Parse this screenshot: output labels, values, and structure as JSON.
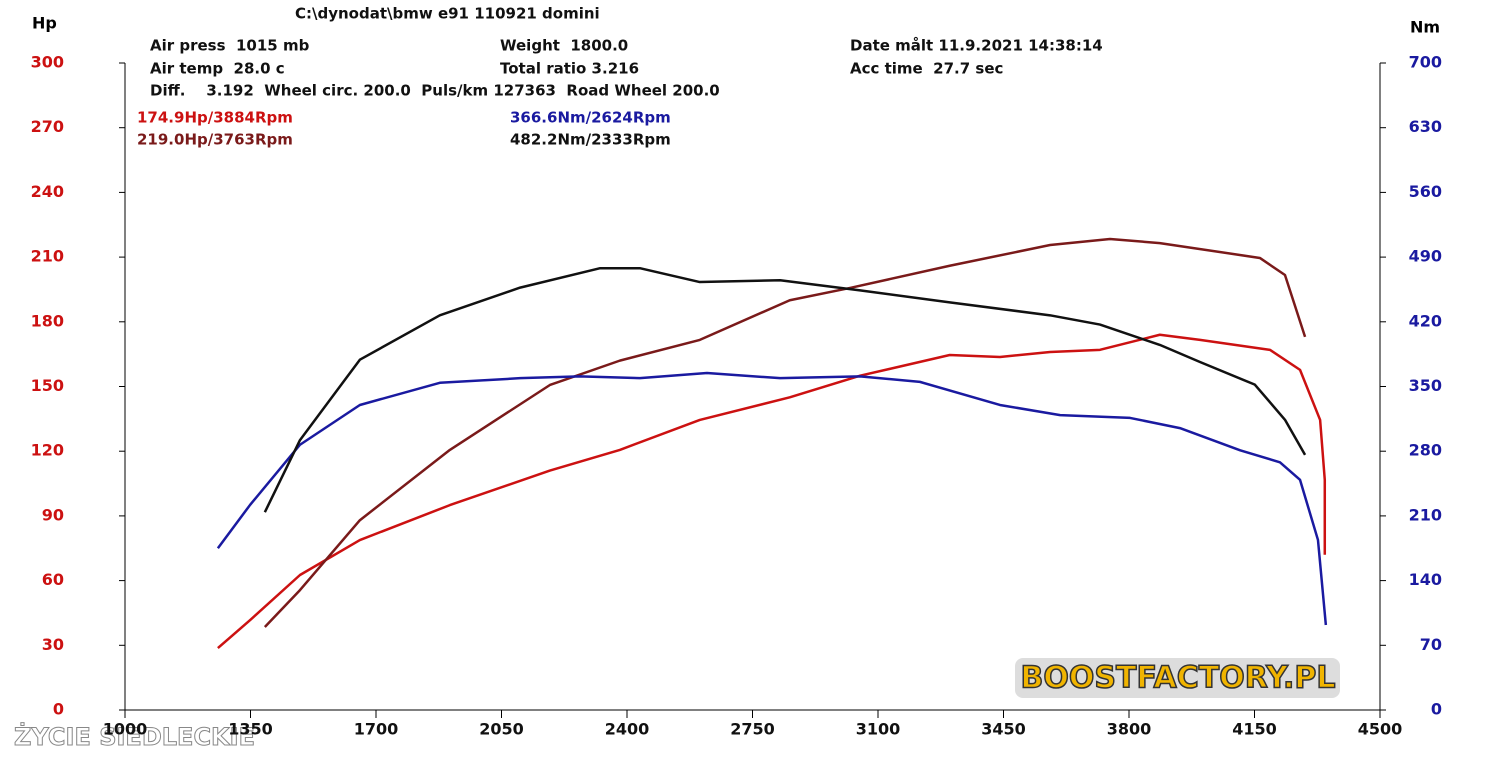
{
  "chart_data": {
    "type": "line",
    "title": "C:\\dynodat\\bmw e91 110921 domini",
    "info": [
      "Air press  1015 mb",
      "Air temp  28.0 c",
      "Diff.    3.192  Wheel circ. 200.0  Puls/km 127363  Road Wheel 200.0",
      "Weight  1800.0",
      "Total ratio 3.216",
      "Date målt 11.9.2021 14:38:14",
      "Acc time  27.7 sec"
    ],
    "y_label": "Hp",
    "y2_label": "Nm",
    "watermarks": [
      "BOOSTFACTORY.PL",
      "ŻYCIE SIEDLECKIE"
    ],
    "xlim": [
      1000,
      4500
    ],
    "xticks": [
      1000,
      1350,
      1700,
      2050,
      2400,
      2750,
      3100,
      3450,
      3800,
      4150,
      4500
    ],
    "ylim": [
      0,
      300
    ],
    "yticks": [
      0,
      30,
      60,
      90,
      120,
      150,
      180,
      210,
      240,
      270,
      300
    ],
    "y2lim": [
      0,
      700
    ],
    "y2ticks": [
      0,
      70,
      140,
      210,
      280,
      350,
      420,
      490,
      560,
      630,
      700
    ],
    "ytick_color": "#cc1111",
    "y2tick_color": "#1a1aa0",
    "series": [
      {
        "name": "174.9Hp/3884Rpm",
        "color": "#cc1111",
        "axis": "y",
        "x": [
          1259,
          1349,
          1488,
          1655,
          1906,
          2185,
          2380,
          2603,
          2854,
          3050,
          3300,
          3440,
          3580,
          3719,
          3886,
          3998,
          4193,
          4277,
          4333,
          4346,
          4346
        ],
        "values": [
          28.7,
          41.7,
          62.6,
          78.8,
          95,
          111,
          120.6,
          134.5,
          145,
          155,
          164.6,
          163.7,
          166,
          167,
          174,
          171.6,
          167,
          157.7,
          134.5,
          106.7,
          72
        ]
      },
      {
        "name": "219.0Hp/3763Rpm",
        "color": "#7a1a1a",
        "axis": "y",
        "x": [
          1390,
          1488,
          1655,
          1906,
          2185,
          2380,
          2603,
          2854,
          3022,
          3300,
          3580,
          3747,
          3886,
          4165,
          4235,
          4291
        ],
        "values": [
          38.5,
          55.6,
          88,
          120.6,
          150.7,
          162,
          171.6,
          190,
          195.7,
          206,
          215.6,
          218.4,
          216.5,
          209.6,
          201.7,
          173
        ]
      },
      {
        "name": "366.6Nm/2624Rpm",
        "color": "#1a1aa0",
        "axis": "y2",
        "x": [
          1259,
          1349,
          1488,
          1655,
          1878,
          2102,
          2269,
          2436,
          2623,
          2827,
          3050,
          3217,
          3440,
          3608,
          3803,
          3942,
          4110,
          4221,
          4277,
          4327,
          4349
        ],
        "values": [
          175,
          222,
          287,
          330,
          354,
          359,
          361,
          359,
          364.6,
          359,
          361,
          355,
          330,
          319,
          316,
          305,
          281,
          268,
          249,
          184,
          92
        ]
      },
      {
        "name": "482.2Nm/2333Rpm",
        "color": "#111111",
        "axis": "y2",
        "x": [
          1390,
          1488,
          1655,
          1878,
          2102,
          2325,
          2436,
          2603,
          2827,
          3050,
          3300,
          3580,
          3719,
          3886,
          3998,
          4151,
          4235,
          4291
        ],
        "values": [
          214,
          292,
          379,
          427,
          457,
          478,
          478,
          463,
          465,
          454,
          441,
          427,
          417,
          395,
          376.5,
          352,
          314,
          276
        ]
      }
    ]
  }
}
